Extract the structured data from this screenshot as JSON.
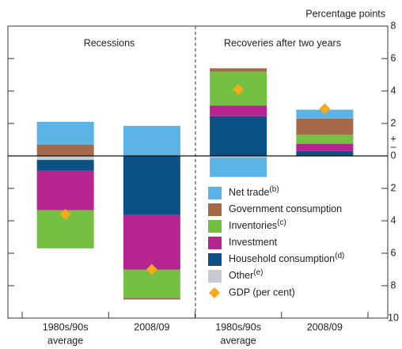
{
  "chart_data": {
    "type": "stacked-bar",
    "unit_label": "Percentage points",
    "groups": [
      "Recessions",
      "Recoveries after two years"
    ],
    "categories": [
      [
        "1980s/90s",
        "average"
      ],
      [
        "2008/09"
      ],
      [
        "1980s/90s",
        "average"
      ],
      [
        "2008/09"
      ]
    ],
    "series": [
      {
        "name": "Net trade",
        "note": "(b)",
        "color": "#5bb4e5",
        "values": [
          1.4,
          1.85,
          -1.2,
          0.55
        ]
      },
      {
        "name": "Government consumption",
        "color": "#a5694a",
        "values": [
          0.7,
          -0.1,
          0.2,
          1.0
        ]
      },
      {
        "name": "Inventories",
        "note": "(c)",
        "color": "#74c043",
        "values": [
          -2.35,
          -1.75,
          2.1,
          0.55
        ]
      },
      {
        "name": "Investment",
        "color": "#b5248f",
        "values": [
          -2.45,
          -3.35,
          0.65,
          0.45
        ]
      },
      {
        "name": "Household consumption",
        "note": "(d)",
        "color": "#0b5186",
        "values": [
          -0.65,
          -3.65,
          2.45,
          0.3
        ]
      },
      {
        "name": "Other",
        "note": "(e)",
        "color": "#c5ccd1",
        "values": [
          -0.25,
          0,
          -0.1,
          0
        ]
      }
    ],
    "gdp": {
      "name": "GDP (per cent)",
      "color": "#f7a81b",
      "values": [
        -3.6,
        -7.0,
        4.1,
        2.9
      ]
    },
    "ylim": [
      -10,
      8
    ],
    "yticks": [
      {
        "value": -10,
        "label": "10"
      },
      {
        "value": -8,
        "label": "8"
      },
      {
        "value": -6,
        "label": "6"
      },
      {
        "value": -4,
        "label": "4"
      },
      {
        "value": -2,
        "label": "2"
      },
      0,
      2,
      4,
      6,
      8
    ],
    "positive_sign": "+",
    "negative_sign": "–"
  }
}
